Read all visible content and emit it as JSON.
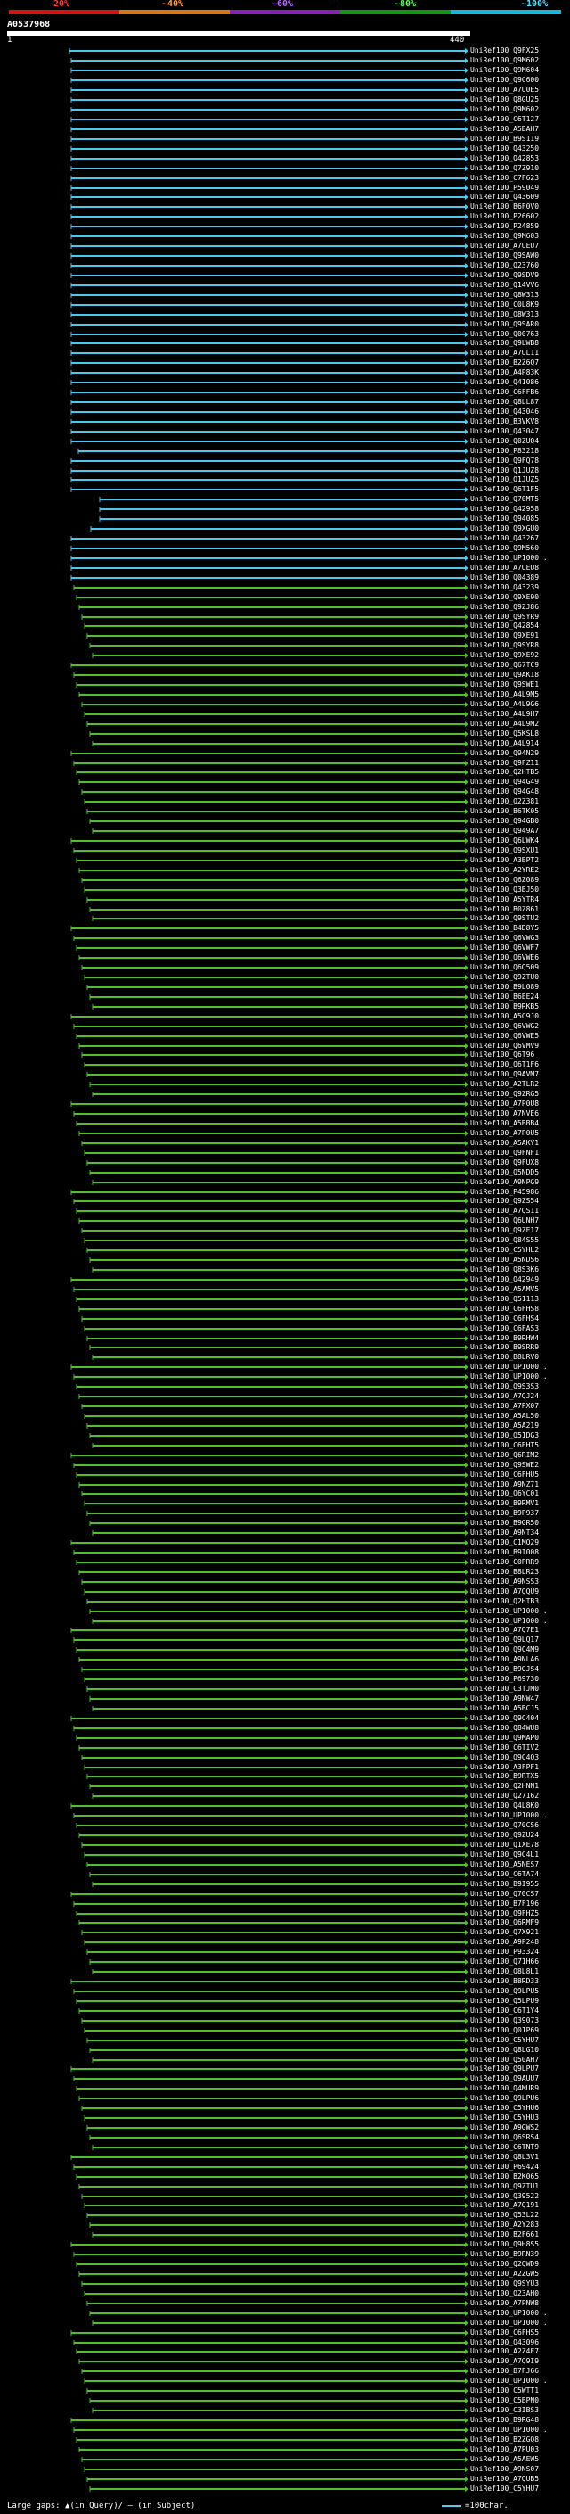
{
  "scale": {
    "ticks": [
      {
        "label": "20%",
        "color": "#ff3a3a"
      },
      {
        "label": "~40%",
        "color": "#ff9f3a"
      },
      {
        "label": "~60%",
        "color": "#b566ff"
      },
      {
        "label": "~80%",
        "color": "#55ff55"
      },
      {
        "label": "~100%",
        "color": "#55ddff"
      }
    ],
    "band_colors": [
      "#dd1111",
      "#dd7711",
      "#8822bb",
      "#119911",
      "#11bbdd"
    ]
  },
  "query": {
    "name": "A0537968",
    "start": "1",
    "end": "440"
  },
  "colors": {
    "cyan": "#4ac8ee",
    "green": "#4fbf2a",
    "background": "#000000"
  },
  "hits": [
    {
      "label": "UniRef100_Q9FX25",
      "color": "cyan"
    },
    {
      "label": "UniRef100_Q9M602",
      "color": "cyan"
    },
    {
      "label": "UniRef100_Q9M604",
      "color": "cyan"
    },
    {
      "label": "UniRef100_Q9C600",
      "color": "cyan"
    },
    {
      "label": "UniRef100_A7U0E5",
      "color": "cyan"
    },
    {
      "label": "UniRef100_Q8GU25",
      "color": "cyan"
    },
    {
      "label": "UniRef100_Q9M602",
      "color": "cyan"
    },
    {
      "label": "UniRef100_C6T127",
      "color": "cyan"
    },
    {
      "label": "UniRef100_A5BAH7",
      "color": "cyan"
    },
    {
      "label": "UniRef100_B9S119",
      "color": "cyan"
    },
    {
      "label": "UniRef100_Q43250",
      "color": "cyan"
    },
    {
      "label": "UniRef100_Q42853",
      "color": "cyan"
    },
    {
      "label": "UniRef100_Q7Z910",
      "color": "cyan"
    },
    {
      "label": "UniRef100_C7F623",
      "color": "cyan"
    },
    {
      "label": "UniRef100_P59049",
      "color": "cyan"
    },
    {
      "label": "UniRef100_Q43609",
      "color": "cyan"
    },
    {
      "label": "UniRef100_B6F0V0",
      "color": "cyan"
    },
    {
      "label": "UniRef100_P26602",
      "color": "cyan"
    },
    {
      "label": "UniRef100_P24859",
      "color": "cyan"
    },
    {
      "label": "UniRef100_Q9M603",
      "color": "cyan"
    },
    {
      "label": "UniRef100_A7UEU7",
      "color": "cyan"
    },
    {
      "label": "UniRef100_Q9SAW0",
      "color": "cyan"
    },
    {
      "label": "UniRef100_Q23760",
      "color": "cyan"
    },
    {
      "label": "UniRef100_Q9SDV9",
      "color": "cyan"
    },
    {
      "label": "UniRef100_Q14VV6",
      "color": "cyan"
    },
    {
      "label": "UniRef100_Q8W313",
      "color": "cyan"
    },
    {
      "label": "UniRef100_C0L8K9",
      "color": "cyan"
    },
    {
      "label": "UniRef100_Q8W313",
      "color": "cyan"
    },
    {
      "label": "UniRef100_Q9SAR0",
      "color": "cyan"
    },
    {
      "label": "UniRef100_Q00763",
      "color": "cyan"
    },
    {
      "label": "UniRef100_Q9LWB8",
      "color": "cyan"
    },
    {
      "label": "UniRef100_A7UL11",
      "color": "cyan"
    },
    {
      "label": "UniRef100_B2Z6Q7",
      "color": "cyan"
    },
    {
      "label": "UniRef100_A4P83K",
      "color": "cyan"
    },
    {
      "label": "UniRef100_Q41086",
      "color": "cyan"
    },
    {
      "label": "UniRef100_C6FFB6",
      "color": "cyan"
    },
    {
      "label": "UniRef100_Q8LL87",
      "color": "cyan"
    },
    {
      "label": "UniRef100_Q43046",
      "color": "cyan"
    },
    {
      "label": "UniRef100_B3VKV8",
      "color": "cyan"
    },
    {
      "label": "UniRef100_Q43047",
      "color": "cyan"
    },
    {
      "label": "UniRef100_Q0ZUQ4",
      "color": "cyan"
    },
    {
      "label": "UniRef100_P83218",
      "color": "cyan"
    },
    {
      "label": "UniRef100_Q9FQ78",
      "color": "cyan"
    },
    {
      "label": "UniRef100_Q1JUZ8",
      "color": "cyan"
    },
    {
      "label": "UniRef100_Q1JUZ5",
      "color": "cyan"
    },
    {
      "label": "UniRef100_Q6T1F5",
      "color": "cyan"
    },
    {
      "label": "UniRef100_Q70MT5",
      "color": "cyan"
    },
    {
      "label": "UniRef100_Q42958",
      "color": "cyan"
    },
    {
      "label": "UniRef100_Q94085",
      "color": "cyan"
    },
    {
      "label": "UniRef100_Q9XGU0",
      "color": "cyan"
    },
    {
      "label": "UniRef100_Q43267",
      "color": "cyan"
    },
    {
      "label": "UniRef100_Q9M560",
      "color": "cyan"
    },
    {
      "label": "UniRef100_UP1000..",
      "color": "cyan"
    },
    {
      "label": "UniRef100_A7UEU8",
      "color": "cyan"
    },
    {
      "label": "UniRef100_Q04389",
      "color": "cyan"
    },
    {
      "label": "UniRef100_Q43239",
      "color": "green"
    },
    {
      "label": "UniRef100_Q9XE90",
      "color": "green"
    },
    {
      "label": "UniRef100_Q9ZJ86",
      "color": "green"
    },
    {
      "label": "UniRef100_Q9SYR9",
      "color": "green"
    },
    {
      "label": "UniRef100_Q42854",
      "color": "green"
    },
    {
      "label": "UniRef100_Q9XE91",
      "color": "green"
    },
    {
      "label": "UniRef100_Q9SYR8",
      "color": "green"
    },
    {
      "label": "UniRef100_Q9XE92",
      "color": "green"
    },
    {
      "label": "UniRef100_Q67TC9",
      "color": "green"
    },
    {
      "label": "UniRef100_Q9AK18",
      "color": "green"
    },
    {
      "label": "UniRef100_Q9SWE1",
      "color": "green"
    },
    {
      "label": "UniRef100_A4L9M5",
      "color": "green"
    },
    {
      "label": "UniRef100_A4L9G6",
      "color": "green"
    },
    {
      "label": "UniRef100_A4L9H7",
      "color": "green"
    },
    {
      "label": "UniRef100_A4L9M2",
      "color": "green"
    },
    {
      "label": "UniRef100_Q5KSL8",
      "color": "green"
    },
    {
      "label": "UniRef100_A4L914",
      "color": "green"
    },
    {
      "label": "UniRef100_Q94N29",
      "color": "green"
    },
    {
      "label": "UniRef100_Q9FZ11",
      "color": "green"
    },
    {
      "label": "UniRef100_Q2HTB5",
      "color": "green"
    },
    {
      "label": "UniRef100_Q94G49",
      "color": "green"
    },
    {
      "label": "UniRef100_Q94G48",
      "color": "green"
    },
    {
      "label": "UniRef100_Q2Z381",
      "color": "green"
    },
    {
      "label": "UniRef100_B6TK05",
      "color": "green"
    },
    {
      "label": "UniRef100_Q94GB0",
      "color": "green"
    },
    {
      "label": "UniRef100_Q949A7",
      "color": "green"
    },
    {
      "label": "UniRef100_Q6LWK4",
      "color": "green"
    },
    {
      "label": "UniRef100_Q9SXU1",
      "color": "green"
    },
    {
      "label": "UniRef100_A3BPT2",
      "color": "green"
    },
    {
      "label": "UniRef100_A2YRE2",
      "color": "green"
    },
    {
      "label": "UniRef100_Q6Z089",
      "color": "green"
    },
    {
      "label": "UniRef100_Q3BJ50",
      "color": "green"
    },
    {
      "label": "UniRef100_A5YTR4",
      "color": "green"
    },
    {
      "label": "UniRef100_B0Z861",
      "color": "green"
    },
    {
      "label": "UniRef100_Q9STU2",
      "color": "green"
    },
    {
      "label": "UniRef100_B4D8Y5",
      "color": "green"
    },
    {
      "label": "UniRef100_Q6VWG3",
      "color": "green"
    },
    {
      "label": "UniRef100_Q6VWF7",
      "color": "green"
    },
    {
      "label": "UniRef100_Q6VWE6",
      "color": "green"
    },
    {
      "label": "UniRef100_Q6Q509",
      "color": "green"
    },
    {
      "label": "UniRef100_Q9ZTU0",
      "color": "green"
    },
    {
      "label": "UniRef100_B9L089",
      "color": "green"
    },
    {
      "label": "UniRef100_B6EE24",
      "color": "green"
    },
    {
      "label": "UniRef100_B9RKB5",
      "color": "green"
    },
    {
      "label": "UniRef100_A5C9J0",
      "color": "green"
    },
    {
      "label": "UniRef100_Q6VWG2",
      "color": "green"
    },
    {
      "label": "UniRef100_Q6VWE5",
      "color": "green"
    },
    {
      "label": "UniRef100_Q6VMV9",
      "color": "green"
    },
    {
      "label": "UniRef100_Q6T96",
      "color": "green"
    },
    {
      "label": "UniRef100_Q6T1F6",
      "color": "green"
    },
    {
      "label": "UniRef100_Q9AVM7",
      "color": "green"
    },
    {
      "label": "UniRef100_A2TLR2",
      "color": "green"
    },
    {
      "label": "UniRef100_Q9ZRG5",
      "color": "green"
    },
    {
      "label": "UniRef100_A7P0U8",
      "color": "green"
    },
    {
      "label": "UniRef100_A7NVE6",
      "color": "green"
    },
    {
      "label": "UniRef100_A5BBB4",
      "color": "green"
    },
    {
      "label": "UniRef100_A7P0U5",
      "color": "green"
    },
    {
      "label": "UniRef100_A5AKY1",
      "color": "green"
    },
    {
      "label": "UniRef100_Q9FNF1",
      "color": "green"
    },
    {
      "label": "UniRef100_Q9FUX8",
      "color": "green"
    },
    {
      "label": "UniRef100_Q5NDD5",
      "color": "green"
    },
    {
      "label": "UniRef100_A9NPG9",
      "color": "green"
    },
    {
      "label": "UniRef100_P45986",
      "color": "green"
    },
    {
      "label": "UniRef100_Q9ZS54",
      "color": "green"
    },
    {
      "label": "UniRef100_A7QS11",
      "color": "green"
    },
    {
      "label": "UniRef100_Q6UNH7",
      "color": "green"
    },
    {
      "label": "UniRef100_Q9ZE17",
      "color": "green"
    },
    {
      "label": "UniRef100_Q84S55",
      "color": "green"
    },
    {
      "label": "UniRef100_C5YHL2",
      "color": "green"
    },
    {
      "label": "UniRef100_A5NDS6",
      "color": "green"
    },
    {
      "label": "UniRef100_Q8S3K6",
      "color": "green"
    },
    {
      "label": "UniRef100_Q42949",
      "color": "green"
    },
    {
      "label": "UniRef100_A5AMV5",
      "color": "green"
    },
    {
      "label": "UniRef100_Q51113",
      "color": "green"
    },
    {
      "label": "UniRef100_C6FHS8",
      "color": "green"
    },
    {
      "label": "UniRef100_C6FHS4",
      "color": "green"
    },
    {
      "label": "UniRef100_C6FAS3",
      "color": "green"
    },
    {
      "label": "UniRef100_B9RHW4",
      "color": "green"
    },
    {
      "label": "UniRef100_B9SRR9",
      "color": "green"
    },
    {
      "label": "UniRef100_B8LRV0",
      "color": "green"
    },
    {
      "label": "UniRef100_UP1000..",
      "color": "green"
    },
    {
      "label": "UniRef100_UP1000..",
      "color": "green"
    },
    {
      "label": "UniRef100_Q9S3S3",
      "color": "green"
    },
    {
      "label": "UniRef100_A7QJ24",
      "color": "green"
    },
    {
      "label": "UniRef100_A7PX07",
      "color": "green"
    },
    {
      "label": "UniRef100_A5AL50",
      "color": "green"
    },
    {
      "label": "UniRef100_A5A219",
      "color": "green"
    },
    {
      "label": "UniRef100_Q51DG3",
      "color": "green"
    },
    {
      "label": "UniRef100_C6EHT5",
      "color": "green"
    },
    {
      "label": "UniRef100_Q6RIM2",
      "color": "green"
    },
    {
      "label": "UniRef100_Q9SWE2",
      "color": "green"
    },
    {
      "label": "UniRef100_C6FHU5",
      "color": "green"
    },
    {
      "label": "UniRef100_A9NZ71",
      "color": "green"
    },
    {
      "label": "UniRef100_Q6YC01",
      "color": "green"
    },
    {
      "label": "UniRef100_B9RMV1",
      "color": "green"
    },
    {
      "label": "UniRef100_B9P937",
      "color": "green"
    },
    {
      "label": "UniRef100_B9GR50",
      "color": "green"
    },
    {
      "label": "UniRef100_A9NT34",
      "color": "green"
    },
    {
      "label": "UniRef100_C1MQ29",
      "color": "green"
    },
    {
      "label": "UniRef100_B9I008",
      "color": "green"
    },
    {
      "label": "UniRef100_C0PRR9",
      "color": "green"
    },
    {
      "label": "UniRef100_B8LR23",
      "color": "green"
    },
    {
      "label": "UniRef100_A9NSS3",
      "color": "green"
    },
    {
      "label": "UniRef100_A7QQU9",
      "color": "green"
    },
    {
      "label": "UniRef100_Q2HTB3",
      "color": "green"
    },
    {
      "label": "UniRef100_UP1000..",
      "color": "green"
    },
    {
      "label": "UniRef100_UP1000..",
      "color": "green"
    },
    {
      "label": "UniRef100_A7Q7E1",
      "color": "green"
    },
    {
      "label": "UniRef100_Q9LQ17",
      "color": "green"
    },
    {
      "label": "UniRef100_Q9C4M9",
      "color": "green"
    },
    {
      "label": "UniRef100_A9NLA6",
      "color": "green"
    },
    {
      "label": "UniRef100_B9GJS4",
      "color": "green"
    },
    {
      "label": "UniRef100_P69730",
      "color": "green"
    },
    {
      "label": "UniRef100_C3TJM0",
      "color": "green"
    },
    {
      "label": "UniRef100_A9NW47",
      "color": "green"
    },
    {
      "label": "UniRef100_A5BCJ5",
      "color": "green"
    },
    {
      "label": "UniRef100_Q9C404",
      "color": "green"
    },
    {
      "label": "UniRef100_Q84WU8",
      "color": "green"
    },
    {
      "label": "UniRef100_Q9MAP0",
      "color": "green"
    },
    {
      "label": "UniRef100_C6TIV2",
      "color": "green"
    },
    {
      "label": "UniRef100_Q9C4Q3",
      "color": "green"
    },
    {
      "label": "UniRef100_A3FPF1",
      "color": "green"
    },
    {
      "label": "UniRef100_B9RTX5",
      "color": "green"
    },
    {
      "label": "UniRef100_Q2HNN1",
      "color": "green"
    },
    {
      "label": "UniRef100_Q27162",
      "color": "green"
    },
    {
      "label": "UniRef100_Q4L8K0",
      "color": "green"
    },
    {
      "label": "UniRef100_UP1000..",
      "color": "green"
    },
    {
      "label": "UniRef100_Q70CS6",
      "color": "green"
    },
    {
      "label": "UniRef100_Q9ZU24",
      "color": "green"
    },
    {
      "label": "UniRef100_Q1XE78",
      "color": "green"
    },
    {
      "label": "UniRef100_Q9C4L1",
      "color": "green"
    },
    {
      "label": "UniRef100_A5NES7",
      "color": "green"
    },
    {
      "label": "UniRef100_C6TA74",
      "color": "green"
    },
    {
      "label": "UniRef100_B9I955",
      "color": "green"
    },
    {
      "label": "UniRef100_Q70CS7",
      "color": "green"
    },
    {
      "label": "UniRef100_B7F196",
      "color": "green"
    },
    {
      "label": "UniRef100_Q9FHZ5",
      "color": "green"
    },
    {
      "label": "UniRef100_Q6RMF9",
      "color": "green"
    },
    {
      "label": "UniRef100_Q7X921",
      "color": "green"
    },
    {
      "label": "UniRef100_A9P248",
      "color": "green"
    },
    {
      "label": "UniRef100_P93324",
      "color": "green"
    },
    {
      "label": "UniRef100_Q71H66",
      "color": "green"
    },
    {
      "label": "UniRef100_Q8L8L1",
      "color": "green"
    },
    {
      "label": "UniRef100_B8RD33",
      "color": "green"
    },
    {
      "label": "UniRef100_Q9LPU5",
      "color": "green"
    },
    {
      "label": "UniRef100_Q5LPU9",
      "color": "green"
    },
    {
      "label": "UniRef100_C6T1Y4",
      "color": "green"
    },
    {
      "label": "UniRef100_Q39073",
      "color": "green"
    },
    {
      "label": "UniRef100_Q01P69",
      "color": "green"
    },
    {
      "label": "UniRef100_C5YHU7",
      "color": "green"
    },
    {
      "label": "UniRef100_Q8LG10",
      "color": "green"
    },
    {
      "label": "UniRef100_Q50AH7",
      "color": "green"
    },
    {
      "label": "UniRef100_Q9LPU7",
      "color": "green"
    },
    {
      "label": "UniRef100_Q9AUU7",
      "color": "green"
    },
    {
      "label": "UniRef100_Q4MUR9",
      "color": "green"
    },
    {
      "label": "UniRef100_Q9LPU6",
      "color": "green"
    },
    {
      "label": "UniRef100_C5YHU6",
      "color": "green"
    },
    {
      "label": "UniRef100_C5YHU3",
      "color": "green"
    },
    {
      "label": "UniRef100_A9GWS2",
      "color": "green"
    },
    {
      "label": "UniRef100_Q6SRS4",
      "color": "green"
    },
    {
      "label": "UniRef100_C6TNT9",
      "color": "green"
    },
    {
      "label": "UniRef100_Q8L3V1",
      "color": "green"
    },
    {
      "label": "UniRef100_P69424",
      "color": "green"
    },
    {
      "label": "UniRef100_B2K065",
      "color": "green"
    },
    {
      "label": "UniRef100_Q9ZTU1",
      "color": "green"
    },
    {
      "label": "UniRef100_Q39522",
      "color": "green"
    },
    {
      "label": "UniRef100_A7Q191",
      "color": "green"
    },
    {
      "label": "UniRef100_Q53L22",
      "color": "green"
    },
    {
      "label": "UniRef100_A2Y283",
      "color": "green"
    },
    {
      "label": "UniRef100_B2F661",
      "color": "green"
    },
    {
      "label": "UniRef100_Q9H8S5",
      "color": "green"
    },
    {
      "label": "UniRef100_B9RN39",
      "color": "green"
    },
    {
      "label": "UniRef100_Q2QWD9",
      "color": "green"
    },
    {
      "label": "UniRef100_A2ZGW5",
      "color": "green"
    },
    {
      "label": "UniRef100_Q9SYU3",
      "color": "green"
    },
    {
      "label": "UniRef100_Q23AH0",
      "color": "green"
    },
    {
      "label": "UniRef100_A7PNW8",
      "color": "green"
    },
    {
      "label": "UniRef100_UP1000..",
      "color": "green"
    },
    {
      "label": "UniRef100_UP1000..",
      "color": "green"
    },
    {
      "label": "UniRef100_C6FHS5",
      "color": "green"
    },
    {
      "label": "UniRef100_Q43096",
      "color": "green"
    },
    {
      "label": "UniRef100_A2Z4F7",
      "color": "green"
    },
    {
      "label": "UniRef100_A7Q9I9",
      "color": "green"
    },
    {
      "label": "UniRef100_B7FJ66",
      "color": "green"
    },
    {
      "label": "UniRef100_UP1000..",
      "color": "green"
    },
    {
      "label": "UniRef100_C5WTT1",
      "color": "green"
    },
    {
      "label": "UniRef100_C5BPN0",
      "color": "green"
    },
    {
      "label": "UniRef100_C3IBS3",
      "color": "green"
    },
    {
      "label": "UniRef100_B9RG48",
      "color": "green"
    },
    {
      "label": "UniRef100_UP1000..",
      "color": "green"
    },
    {
      "label": "UniRef100_B2ZGQ8",
      "color": "green"
    },
    {
      "label": "UniRef100_A7PU03",
      "color": "green"
    },
    {
      "label": "UniRef100_A5AEW5",
      "color": "green"
    },
    {
      "label": "UniRef100_A9NS07",
      "color": "green"
    },
    {
      "label": "UniRef100_A7QUB5",
      "color": "green"
    },
    {
      "label": "UniRef100_C5YHU7",
      "color": "green"
    }
  ],
  "footer": {
    "left": "Large gaps: ▲(in Query)/ — (in Subject)",
    "right": "=100char."
  }
}
